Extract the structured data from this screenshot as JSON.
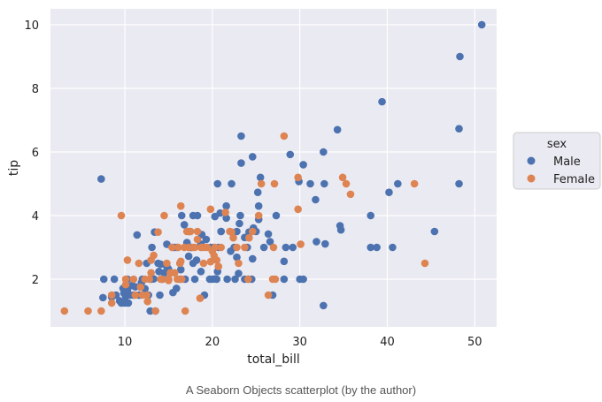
{
  "chart_data": {
    "type": "scatter",
    "xlabel": "total_bill",
    "ylabel": "tip",
    "xlim": [
      1.5,
      52.5
    ],
    "ylim": [
      0.5,
      10.5
    ],
    "xticks": [
      10,
      20,
      30,
      40,
      50
    ],
    "yticks": [
      2,
      4,
      6,
      8,
      10
    ],
    "grid": true,
    "legend": {
      "title": "sex",
      "placement": "right",
      "entries": [
        {
          "label": "Male",
          "color": "#4c72b0"
        },
        {
          "label": "Female",
          "color": "#dd8452"
        }
      ]
    },
    "series": [
      {
        "name": "Male",
        "color": "#4c72b0",
        "points": [
          [
            50.8,
            10.0
          ],
          [
            48.3,
            9.0
          ],
          [
            48.2,
            6.73
          ],
          [
            48.2,
            5.0
          ],
          [
            39.4,
            7.58
          ],
          [
            34.3,
            6.7
          ],
          [
            32.7,
            6.0
          ],
          [
            28.9,
            5.92
          ],
          [
            30.4,
            5.6
          ],
          [
            31.2,
            5.0
          ],
          [
            32.8,
            5.0
          ],
          [
            29.9,
            5.07
          ],
          [
            23.3,
            6.5
          ],
          [
            23.3,
            5.65
          ],
          [
            24.6,
            5.85
          ],
          [
            25.5,
            5.2
          ],
          [
            25.2,
            4.73
          ],
          [
            25.3,
            4.3
          ],
          [
            20.6,
            5.0
          ],
          [
            22.2,
            5.0
          ],
          [
            21.6,
            4.3
          ],
          [
            7.3,
            5.15
          ],
          [
            31.8,
            4.5
          ],
          [
            40.2,
            4.73
          ],
          [
            41.2,
            5.0
          ],
          [
            38.1,
            4.0
          ],
          [
            34.6,
            3.68
          ],
          [
            34.7,
            3.55
          ],
          [
            45.4,
            3.5
          ],
          [
            38.1,
            3.0
          ],
          [
            38.8,
            3.0
          ],
          [
            40.6,
            3.0
          ],
          [
            32.9,
            3.11
          ],
          [
            31.9,
            3.18
          ],
          [
            28.4,
            3.0
          ],
          [
            29.2,
            3.0
          ],
          [
            28.2,
            2.56
          ],
          [
            26.4,
            3.42
          ],
          [
            27.3,
            4.0
          ],
          [
            24.2,
            3.48
          ],
          [
            24.0,
            3.0
          ],
          [
            24.7,
            3.61
          ],
          [
            23.7,
            3.31
          ],
          [
            22.8,
            2.69
          ],
          [
            23.2,
            4.0
          ],
          [
            20.9,
            4.08
          ],
          [
            20.3,
            3.97
          ],
          [
            21.0,
            3.5
          ],
          [
            21.6,
            3.92
          ],
          [
            20.1,
            3.0
          ],
          [
            20.7,
            3.0
          ],
          [
            20.0,
            2.0
          ],
          [
            20.5,
            2.0
          ],
          [
            19.8,
            3.0
          ],
          [
            18.8,
            3.4
          ],
          [
            18.3,
            4.0
          ],
          [
            17.8,
            4.0
          ],
          [
            17.1,
            3.15
          ],
          [
            16.5,
            4.0
          ],
          [
            16.8,
            3.71
          ],
          [
            17.3,
            3.5
          ],
          [
            16.3,
            2.5
          ],
          [
            16.0,
            3.0
          ],
          [
            15.5,
            3.0
          ],
          [
            15.0,
            2.0
          ],
          [
            14.5,
            2.2
          ],
          [
            14.8,
            3.1
          ],
          [
            13.8,
            2.5
          ],
          [
            13.4,
            3.48
          ],
          [
            13.0,
            2.0
          ],
          [
            12.7,
            1.5
          ],
          [
            12.5,
            2.5
          ],
          [
            12.0,
            2.0
          ],
          [
            11.7,
            1.5
          ],
          [
            11.4,
            3.39
          ],
          [
            11.2,
            1.76
          ],
          [
            11.0,
            1.5
          ],
          [
            10.6,
            1.5
          ],
          [
            10.3,
            2.0
          ],
          [
            10.1,
            1.45
          ],
          [
            9.9,
            1.56
          ],
          [
            9.6,
            1.25
          ],
          [
            9.4,
            1.32
          ],
          [
            9.0,
            1.5
          ],
          [
            8.8,
            2.0
          ],
          [
            8.5,
            1.44
          ],
          [
            7.6,
            2.0
          ],
          [
            7.5,
            1.42
          ],
          [
            10.3,
            1.66
          ],
          [
            9.8,
            1.71
          ],
          [
            10.0,
            1.25
          ],
          [
            10.4,
            1.25
          ],
          [
            12.9,
            1.0
          ],
          [
            13.3,
            2.01
          ],
          [
            13.9,
            2.24
          ],
          [
            14.1,
            2.47
          ],
          [
            14.3,
            2.0
          ],
          [
            15.0,
            2.31
          ],
          [
            15.5,
            1.58
          ],
          [
            15.9,
            1.71
          ],
          [
            16.3,
            2.0
          ],
          [
            16.9,
            2.0
          ],
          [
            17.3,
            2.72
          ],
          [
            17.8,
            2.5
          ],
          [
            18.2,
            2.6
          ],
          [
            18.7,
            2.24
          ],
          [
            19.1,
            1.5
          ],
          [
            19.7,
            2.0
          ],
          [
            20.3,
            2.01
          ],
          [
            20.6,
            2.24
          ],
          [
            22.1,
            2.88
          ],
          [
            22.6,
            2.0
          ],
          [
            23.0,
            2.18
          ],
          [
            23.7,
            2.0
          ],
          [
            24.1,
            2.0
          ],
          [
            24.5,
            2.0
          ],
          [
            28.2,
            2.0
          ],
          [
            30.0,
            2.0
          ],
          [
            30.4,
            2.0
          ],
          [
            26.9,
            1.5
          ],
          [
            32.7,
            1.17
          ],
          [
            13.5,
            1.0
          ],
          [
            12.3,
            1.7
          ],
          [
            11.9,
            1.89
          ],
          [
            13.1,
            3.0
          ],
          [
            14.0,
            1.5
          ],
          [
            15.7,
            3.0
          ],
          [
            16.4,
            2.3
          ],
          [
            17.6,
            3.0
          ],
          [
            18.0,
            2.0
          ],
          [
            19.3,
            3.25
          ],
          [
            21.0,
            3.5
          ],
          [
            22.8,
            3.5
          ],
          [
            21.7,
            2.0
          ],
          [
            23.1,
            3.75
          ],
          [
            25.9,
            3.0
          ],
          [
            26.6,
            3.18
          ],
          [
            24.6,
            2.64
          ],
          [
            22.5,
            3.0
          ],
          [
            25.0,
            3.5
          ],
          [
            25.3,
            3.88
          ],
          [
            18.7,
            3.1
          ],
          [
            17.5,
            3.0
          ],
          [
            14.8,
            2.4
          ],
          [
            11.6,
            1.5
          ],
          [
            10.8,
            1.8
          ]
        ]
      },
      {
        "name": "Female",
        "color": "#dd8452",
        "points": [
          [
            3.1,
            1.0
          ],
          [
            5.8,
            1.0
          ],
          [
            7.3,
            1.0
          ],
          [
            8.5,
            1.25
          ],
          [
            8.5,
            1.5
          ],
          [
            9.6,
            4.0
          ],
          [
            10.1,
            2.0
          ],
          [
            10.3,
            2.6
          ],
          [
            10.1,
            1.83
          ],
          [
            11.0,
            2.0
          ],
          [
            11.2,
            1.5
          ],
          [
            11.6,
            2.5
          ],
          [
            12.0,
            1.5
          ],
          [
            12.3,
            2.0
          ],
          [
            12.5,
            1.5
          ],
          [
            12.8,
            2.0
          ],
          [
            13.0,
            2.2
          ],
          [
            13.3,
            2.75
          ],
          [
            13.5,
            1.0
          ],
          [
            13.8,
            3.48
          ],
          [
            14.1,
            2.0
          ],
          [
            14.5,
            4.0
          ],
          [
            14.8,
            2.5
          ],
          [
            15.0,
            2.0
          ],
          [
            15.4,
            3.0
          ],
          [
            15.7,
            2.2
          ],
          [
            16.0,
            2.0
          ],
          [
            16.3,
            2.5
          ],
          [
            16.4,
            4.3
          ],
          [
            16.5,
            2.0
          ],
          [
            16.8,
            3.0
          ],
          [
            16.9,
            1.0
          ],
          [
            17.1,
            3.5
          ],
          [
            17.3,
            3.0
          ],
          [
            17.5,
            3.5
          ],
          [
            17.8,
            3.0
          ],
          [
            18.0,
            3.0
          ],
          [
            18.3,
            3.5
          ],
          [
            18.6,
            1.4
          ],
          [
            18.7,
            3.0
          ],
          [
            19.0,
            2.5
          ],
          [
            19.4,
            3.0
          ],
          [
            19.8,
            4.2
          ],
          [
            20.3,
            3.0
          ],
          [
            20.5,
            2.6
          ],
          [
            20.7,
            2.4
          ],
          [
            21.0,
            3.0
          ],
          [
            21.5,
            4.1
          ],
          [
            22.0,
            3.5
          ],
          [
            22.4,
            3.3
          ],
          [
            22.8,
            3.0
          ],
          [
            23.0,
            2.5
          ],
          [
            23.7,
            3.0
          ],
          [
            24.1,
            2.0
          ],
          [
            24.6,
            3.5
          ],
          [
            25.3,
            4.0
          ],
          [
            25.6,
            5.0
          ],
          [
            26.4,
            1.5
          ],
          [
            27.0,
            3.0
          ],
          [
            27.1,
            5.0
          ],
          [
            27.2,
            2.0
          ],
          [
            28.2,
            6.5
          ],
          [
            29.8,
            4.2
          ],
          [
            29.8,
            5.2
          ],
          [
            30.1,
            3.1
          ],
          [
            34.9,
            5.2
          ],
          [
            35.3,
            5.0
          ],
          [
            35.8,
            4.67
          ],
          [
            43.1,
            5.0
          ],
          [
            44.3,
            2.5
          ],
          [
            15.0,
            1.96
          ],
          [
            16.1,
            3.0
          ],
          [
            17.5,
            3.5
          ],
          [
            18.3,
            3.25
          ],
          [
            19.1,
            3.0
          ],
          [
            19.8,
            2.55
          ],
          [
            20.2,
            2.74
          ],
          [
            14.3,
            2.0
          ],
          [
            11.8,
            1.75
          ],
          [
            12.6,
            1.3
          ],
          [
            13.0,
            2.6
          ],
          [
            15.2,
            2.2
          ],
          [
            16.4,
            2.56
          ],
          [
            18.8,
            3.0
          ],
          [
            20.0,
            2.88
          ],
          [
            22.2,
            3.48
          ],
          [
            24.2,
            3.3
          ],
          [
            26.9,
            2.0
          ]
        ]
      }
    ]
  },
  "caption": "A Seaborn Objects scatterplot (by the author)"
}
